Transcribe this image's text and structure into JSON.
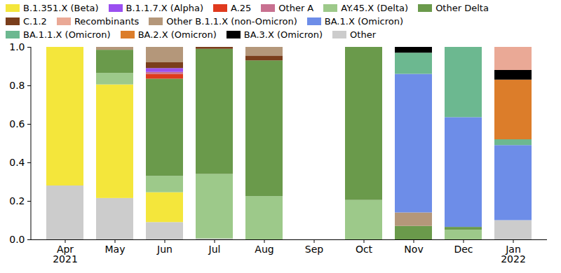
{
  "chart_data": {
    "type": "bar",
    "stacked": true,
    "legend": "top",
    "categories": [
      "Apr\n2021",
      "May",
      "Jun",
      "Jul",
      "Aug",
      "Sep",
      "Oct",
      "Nov",
      "Dec",
      "Jan\n2022"
    ],
    "ylim": [
      0,
      1
    ],
    "yticks": [
      {
        "value": 0,
        "label": "0.0"
      },
      0.2,
      0.4,
      0.6,
      0.8,
      {
        "value": 1,
        "label": "1.0"
      }
    ],
    "series": [
      {
        "name": "B.1.351.X (Beta)",
        "color": "#f4e63b",
        "values": [
          0.72,
          0.59,
          0.155,
          0,
          0,
          0,
          0,
          0,
          0,
          0
        ]
      },
      {
        "name": "B.1.1.7.X (Alpha)",
        "color": "#9b4ff0",
        "values": [
          0,
          0,
          0.02,
          0,
          0,
          0,
          0,
          0,
          0,
          0
        ]
      },
      {
        "name": "A.25",
        "color": "#e03a1e",
        "values": [
          0,
          0,
          0.025,
          0,
          0,
          0,
          0,
          0,
          0,
          0
        ]
      },
      {
        "name": "Other A",
        "color": "#c87090",
        "values": [
          0,
          0,
          0.01,
          0,
          0,
          0,
          0,
          0,
          0,
          0
        ]
      },
      {
        "name": "AY.45.X (Delta)",
        "color": "#9dc98a",
        "values": [
          0,
          0.06,
          0.085,
          0.335,
          0.225,
          0,
          0.205,
          0,
          0.05,
          0
        ]
      },
      {
        "name": "Other Delta",
        "color": "#6a9a4b",
        "values": [
          0,
          0.12,
          0.505,
          0.65,
          0.705,
          0,
          0.795,
          0.07,
          0.015,
          0
        ]
      },
      {
        "name": "C.1.2",
        "color": "#7a3e1c",
        "values": [
          0,
          0,
          0.03,
          0.01,
          0.025,
          0,
          0,
          0,
          0,
          0
        ]
      },
      {
        "name": "Recombinants",
        "color": "#eaa996",
        "values": [
          0,
          0,
          0,
          0,
          0,
          0,
          0,
          0,
          0,
          0.12
        ]
      },
      {
        "name": "Other B.1.1.X (non-Omicron)",
        "color": "#b4977a",
        "values": [
          0,
          0.015,
          0.08,
          0,
          0.045,
          0,
          0,
          0.07,
          0,
          0
        ]
      },
      {
        "name": "BA.1.X (Omicron)",
        "color": "#6d8de8",
        "values": [
          0,
          0,
          0,
          0,
          0,
          0,
          0,
          0.72,
          0.57,
          0.39
        ]
      },
      {
        "name": "BA.1.1.X (Omicron)",
        "color": "#6cb890",
        "values": [
          0,
          0,
          0,
          0,
          0,
          0,
          0,
          0.11,
          0.365,
          0.03
        ]
      },
      {
        "name": "BA.2.X (Omicron)",
        "color": "#dc7d2a",
        "values": [
          0,
          0,
          0,
          0,
          0,
          0,
          0,
          0,
          0,
          0.31
        ]
      },
      {
        "name": "BA.3.X (Omicron)",
        "color": "#000000",
        "values": [
          0,
          0,
          0,
          0,
          0,
          0,
          0,
          0.03,
          0,
          0.05
        ]
      },
      {
        "name": "Other",
        "color": "#cccccc",
        "values": [
          0.28,
          0.215,
          0.09,
          0.005,
          0,
          0,
          0,
          0,
          0,
          0.1
        ]
      }
    ]
  }
}
